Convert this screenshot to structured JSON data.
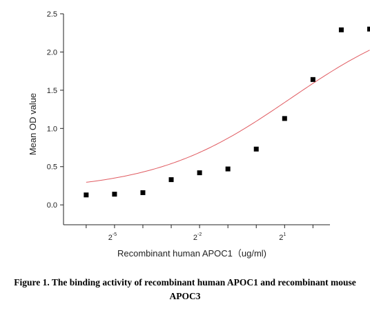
{
  "chart_data": {
    "type": "scatter",
    "title": "",
    "xlabel": "Recombinant human  APOC1（ug/ml)",
    "ylabel": "Mean OD value",
    "x_scale": "log2",
    "xlim_log2": [
      -6.8,
      2.6
    ],
    "ylim": [
      -0.26,
      2.5
    ],
    "y_ticks": [
      0.0,
      0.5,
      1.0,
      1.5,
      2.0,
      2.5
    ],
    "y_tick_labels": [
      "0.0",
      "0.5",
      "1.0",
      "1.5",
      "2.0",
      "2.5"
    ],
    "x_tick_labels": [
      {
        "base": "2",
        "exp": "-5"
      },
      {
        "base": "2",
        "exp": "-2"
      },
      {
        "base": "2",
        "exp": "1"
      }
    ],
    "x_ticks_log2": [
      -5,
      -2,
      1
    ],
    "x_minor_ticks_log2": [
      -6,
      -4,
      -3,
      -1,
      0,
      2
    ],
    "grid": false,
    "series": [
      {
        "marker": "square",
        "color": "#000000",
        "points_log2": [
          {
            "x": -6,
            "y": 0.13
          },
          {
            "x": -5,
            "y": 0.14
          },
          {
            "x": -4,
            "y": 0.16
          },
          {
            "x": -3,
            "y": 0.33
          },
          {
            "x": -2,
            "y": 0.42
          },
          {
            "x": -1,
            "y": 0.47
          },
          {
            "x": 0,
            "y": 0.73
          },
          {
            "x": 1,
            "y": 1.13
          },
          {
            "x": 2,
            "y": 1.64
          },
          {
            "x": 3,
            "y": 2.29
          },
          {
            "x": 4,
            "y": 2.3
          }
        ]
      }
    ],
    "fit_curve": {
      "color": "#e05a60",
      "model": "4PL",
      "bottom": 0.18,
      "top": 2.6,
      "ec50_log2": 1.2,
      "hill": 0.6,
      "x_range_log2": [
        -6,
        4
      ]
    }
  },
  "caption": {
    "line1": "Figure 1. The binding activity of recombinant human APOC1 and recombinant mouse",
    "line2": "APOC3"
  }
}
